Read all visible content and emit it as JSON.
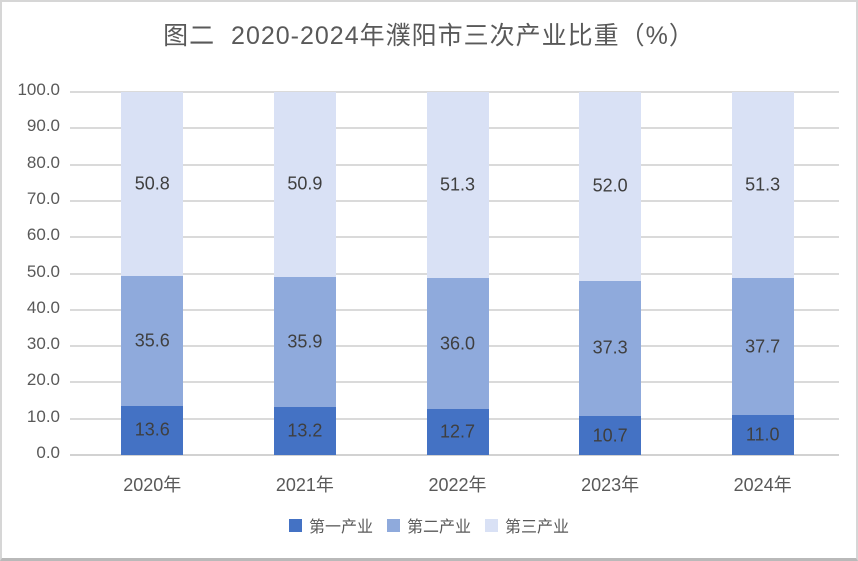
{
  "chart_data": {
    "type": "bar",
    "stacked": true,
    "title": "图二  2020-2024年濮阳市三次产业比重（%）",
    "categories": [
      "2020年",
      "2021年",
      "2022年",
      "2023年",
      "2024年"
    ],
    "series": [
      {
        "name": "第一产业",
        "color": "#4472C4",
        "values": [
          13.6,
          13.2,
          12.7,
          10.7,
          11.0
        ]
      },
      {
        "name": "第二产业",
        "color": "#8FAADC",
        "values": [
          35.6,
          35.9,
          36.0,
          37.3,
          37.7
        ]
      },
      {
        "name": "第三产业",
        "color": "#D9E1F5",
        "values": [
          50.8,
          50.9,
          51.3,
          52.0,
          51.3
        ]
      }
    ],
    "ylim": [
      0,
      100
    ],
    "y_ticks": [
      "0.0",
      "10.0",
      "20.0",
      "30.0",
      "40.0",
      "50.0",
      "60.0",
      "70.0",
      "80.0",
      "90.0",
      "100.0"
    ],
    "grid": true,
    "legend_position": "bottom",
    "value_labels": "inside-center, one decimal"
  },
  "style_colors": {
    "gridline": "#DADADA",
    "axis_baseline": "#D2D2D2",
    "axis_text": "#595959",
    "value_label_text": "#3F3F3F",
    "title_text": "#595959",
    "frame_border": "#D6D6D6"
  }
}
